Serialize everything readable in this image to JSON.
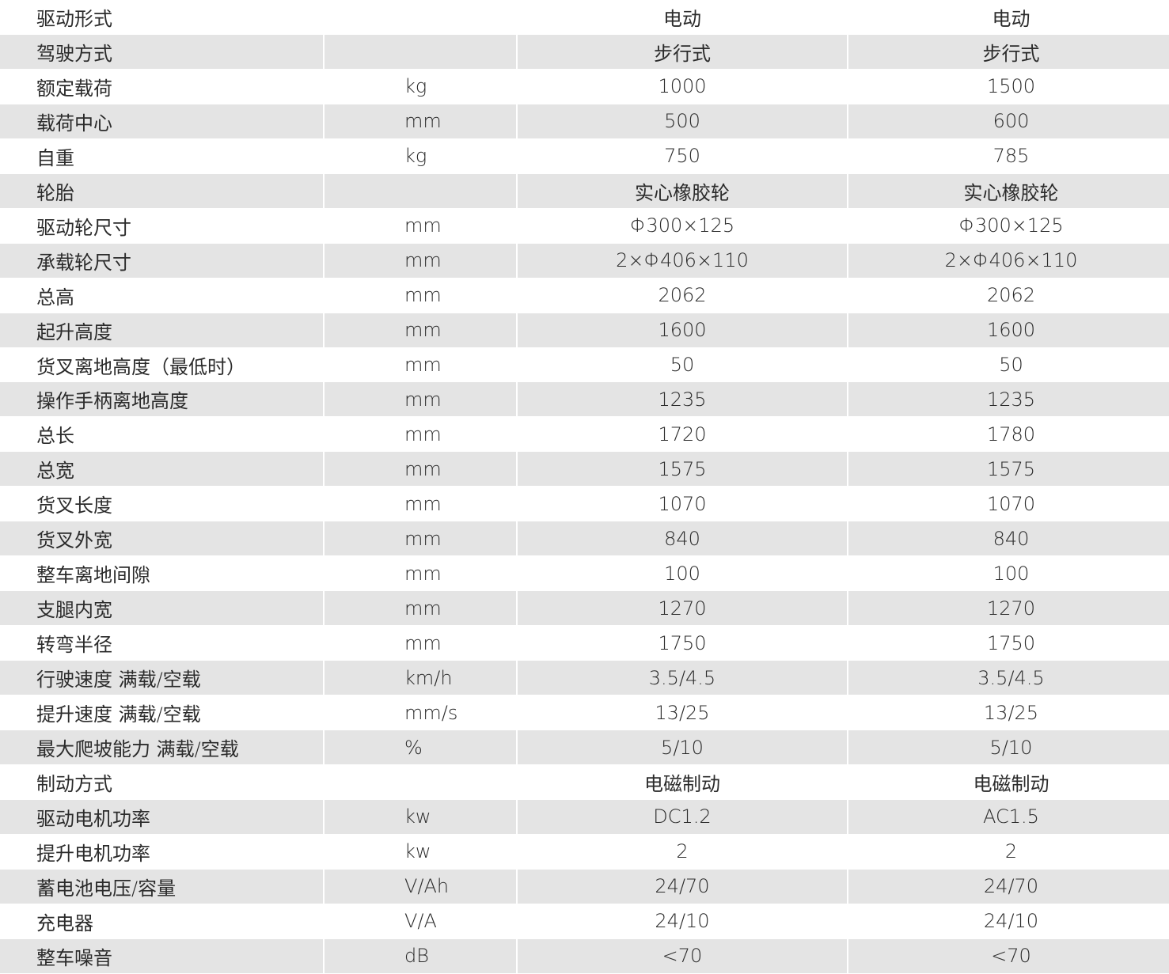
{
  "columns": [
    "",
    "",
    "",
    ""
  ],
  "rows": [
    {
      "label": "驱动形式",
      "unit": "",
      "v1": "电动",
      "v2": "电动"
    },
    {
      "label": "驾驶方式",
      "unit": "",
      "v1": "步行式",
      "v2": "步行式"
    },
    {
      "label": "额定载荷",
      "unit": "kg",
      "v1": "1000",
      "v2": "1500"
    },
    {
      "label": "载荷中心",
      "unit": "mm",
      "v1": "500",
      "v2": "600"
    },
    {
      "label": "自重",
      "unit": "kg",
      "v1": "750",
      "v2": "785"
    },
    {
      "label": "轮胎",
      "unit": "",
      "v1": "实心橡胶轮",
      "v2": "实心橡胶轮"
    },
    {
      "label": "驱动轮尺寸",
      "unit": "mm",
      "v1": "Φ300×125",
      "v2": "Φ300×125"
    },
    {
      "label": "承载轮尺寸",
      "unit": "mm",
      "v1": "2×Φ406×110",
      "v2": "2×Φ406×110"
    },
    {
      "label": "总高",
      "unit": "mm",
      "v1": "2062",
      "v2": "2062"
    },
    {
      "label": "起升高度",
      "unit": "mm",
      "v1": "1600",
      "v2": "1600"
    },
    {
      "label": "货叉离地高度（最低时）",
      "unit": "mm",
      "v1": "50",
      "v2": "50"
    },
    {
      "label": "操作手柄离地高度",
      "unit": "mm",
      "v1": "1235",
      "v2": "1235"
    },
    {
      "label": "总长",
      "unit": "mm",
      "v1": "1720",
      "v2": "1780"
    },
    {
      "label": "总宽",
      "unit": "mm",
      "v1": "1575",
      "v2": "1575"
    },
    {
      "label": "货叉长度",
      "unit": "mm",
      "v1": "1070",
      "v2": "1070"
    },
    {
      "label": "货叉外宽",
      "unit": "mm",
      "v1": "840",
      "v2": "840"
    },
    {
      "label": "整车离地间隙",
      "unit": "mm",
      "v1": "100",
      "v2": "100"
    },
    {
      "label": "支腿内宽",
      "unit": "mm",
      "v1": "1270",
      "v2": "1270"
    },
    {
      "label": "转弯半径",
      "unit": "mm",
      "v1": "1750",
      "v2": "1750"
    },
    {
      "label": "行驶速度  满载/空载",
      "unit": "km/h",
      "v1": "3.5/4.5",
      "v2": "3.5/4.5"
    },
    {
      "label": "提升速度  满载/空载",
      "unit": "mm/s",
      "v1": "13/25",
      "v2": "13/25"
    },
    {
      "label": "最大爬坡能力 满载/空载",
      "unit": "%",
      "v1": "5/10",
      "v2": "5/10"
    },
    {
      "label": "制动方式",
      "unit": "",
      "v1": "电磁制动",
      "v2": "电磁制动"
    },
    {
      "label": "驱动电机功率",
      "unit": "kw",
      "v1": "DC1.2",
      "v2": "AC1.5"
    },
    {
      "label": "提升电机功率",
      "unit": "kw",
      "v1": "2",
      "v2": "2"
    },
    {
      "label": "蓄电池电压/容量",
      "unit": "V/Ah",
      "v1": "24/70",
      "v2": "24/70"
    },
    {
      "label": "充电器",
      "unit": "V/A",
      "v1": "24/10",
      "v2": "24/10"
    },
    {
      "label": "整车噪音",
      "unit": "dB",
      "v1": "<70",
      "v2": "<70"
    }
  ],
  "colors": {
    "stripe": "#e4e4e4",
    "text": "#2b2b2b"
  }
}
